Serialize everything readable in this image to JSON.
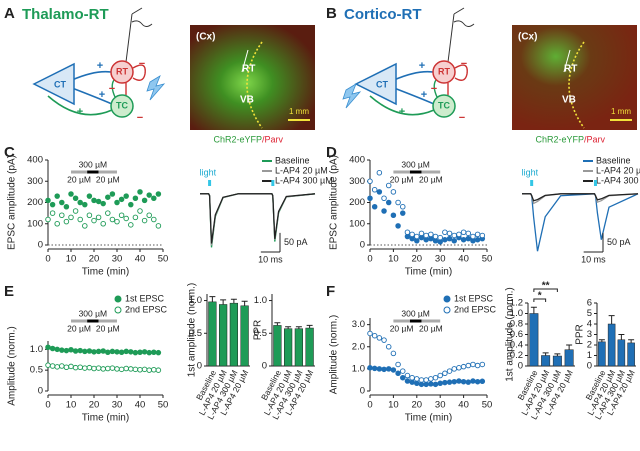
{
  "panels": {
    "A": {
      "label": "A",
      "title": "Thalamo-RT",
      "color": "#1e9b57",
      "diagram": {
        "nodes": [
          "CT",
          "RT",
          "TC"
        ],
        "signs": [
          "+",
          "+",
          "+",
          "−",
          "−",
          "−"
        ]
      },
      "image": {
        "labels": [
          "(Cx)",
          "RT",
          "VB"
        ],
        "scale": "1 mm",
        "caption": [
          "ChR2-eYFP",
          "/Parv"
        ]
      }
    },
    "B": {
      "label": "B",
      "title": "Cortico-RT",
      "color": "#1f6fb5",
      "diagram": {
        "nodes": [
          "CT",
          "RT",
          "TC"
        ],
        "signs": [
          "+",
          "+",
          "+",
          "−",
          "−",
          "−"
        ]
      },
      "image": {
        "labels": [
          "(Cx)",
          "RT",
          "VB"
        ],
        "scale": "1 mm",
        "caption": [
          "ChR2-eYFP",
          "/Parv"
        ]
      }
    },
    "C": {
      "label": "C"
    },
    "D": {
      "label": "D"
    },
    "E": {
      "label": "E"
    },
    "F": {
      "label": "F"
    }
  },
  "chart_data": [
    {
      "type": "scatter",
      "y_label": "EPSC amplitude (pA)",
      "x_label": "Time (min)",
      "xlim": [
        0,
        50
      ],
      "xticks": [
        0,
        10,
        20,
        30,
        40,
        50
      ],
      "ylim": [
        0,
        400
      ],
      "yticks": [
        0,
        100,
        200,
        300,
        400
      ],
      "zero_line": "dotted",
      "drug_bars": [
        {
          "label": "300 µM",
          "start": 17,
          "end": 22,
          "color": "#000000"
        },
        {
          "label": "20 µM",
          "start": 10,
          "end": 17,
          "color": "#aaaaaa"
        },
        {
          "label": "20 µM",
          "start": 22,
          "end": 30,
          "color": "#aaaaaa"
        }
      ],
      "x": [
        0,
        2,
        4,
        6,
        8,
        10,
        12,
        14,
        16,
        18,
        20,
        22,
        24,
        26,
        28,
        30,
        32,
        34,
        36,
        38,
        40,
        42,
        44,
        46,
        48
      ],
      "series": [
        {
          "color": "#1e9b57",
          "filled": true,
          "values": [
            210,
            190,
            230,
            200,
            180,
            240,
            220,
            200,
            190,
            230,
            210,
            205,
            195,
            225,
            240,
            200,
            215,
            230,
            190,
            220,
            250,
            210,
            235,
            220,
            240
          ]
        },
        {
          "color": "#1e9b57",
          "filled": false,
          "values": [
            120,
            150,
            100,
            140,
            110,
            130,
            160,
            120,
            90,
            140,
            115,
            130,
            100,
            150,
            120,
            110,
            140,
            125,
            95,
            130,
            160,
            115,
            140,
            120,
            90
          ]
        }
      ]
    },
    {
      "type": "trace",
      "xlim": [
        0,
        60
      ],
      "ylim": [
        -160,
        10
      ],
      "light": {
        "label": "light",
        "times": [
          5,
          38
        ]
      },
      "scalebar": {
        "y": {
          "value": 50,
          "label": "50 pA"
        },
        "x": {
          "value": 10,
          "label": "10 ms"
        }
      },
      "x": [
        0,
        4.5,
        5,
        6,
        8,
        12,
        20,
        37.5,
        38,
        39,
        41,
        45,
        60
      ],
      "series": [
        {
          "name": "Baseline",
          "color": "#1e9b57",
          "values": [
            0,
            0,
            -5,
            -140,
            -60,
            -10,
            0,
            0,
            -5,
            -125,
            -50,
            -8,
            0
          ]
        },
        {
          "name": "L-AP4 20 µM",
          "color": "#999999",
          "values": [
            0,
            0,
            -5,
            -135,
            -58,
            -10,
            0,
            0,
            -5,
            -120,
            -48,
            -8,
            0
          ]
        },
        {
          "name": "L-AP4 300 µM",
          "color": "#222222",
          "values": [
            0,
            0,
            -5,
            -130,
            -55,
            -9,
            0,
            0,
            -5,
            -118,
            -46,
            -7,
            0
          ]
        }
      ]
    },
    {
      "type": "scatter",
      "y_label": "EPSC amplitude (pA)",
      "x_label": "Time (min)",
      "xlim": [
        0,
        50
      ],
      "xticks": [
        0,
        10,
        20,
        30,
        40,
        50
      ],
      "ylim": [
        0,
        400
      ],
      "yticks": [
        0,
        100,
        200,
        300,
        400
      ],
      "zero_line": "dotted",
      "drug_bars": [
        {
          "label": "300 µM",
          "start": 17,
          "end": 22,
          "color": "#000000"
        },
        {
          "label": "20 µM",
          "start": 10,
          "end": 17,
          "color": "#aaaaaa"
        },
        {
          "label": "20 µM",
          "start": 22,
          "end": 30,
          "color": "#aaaaaa"
        }
      ],
      "x": [
        0,
        2,
        4,
        6,
        8,
        10,
        12,
        14,
        16,
        18,
        20,
        22,
        24,
        26,
        28,
        30,
        32,
        34,
        36,
        38,
        40,
        42,
        44,
        46,
        48
      ],
      "series": [
        {
          "color": "#1f6fb5",
          "filled": true,
          "values": [
            220,
            180,
            250,
            160,
            200,
            140,
            90,
            150,
            40,
            30,
            20,
            35,
            25,
            30,
            20,
            15,
            25,
            30,
            20,
            35,
            25,
            30,
            20,
            25,
            30
          ]
        },
        {
          "color": "#1f6fb5",
          "filled": false,
          "values": [
            300,
            260,
            340,
            220,
            280,
            250,
            200,
            180,
            60,
            50,
            40,
            55,
            45,
            50,
            40,
            35,
            60,
            55,
            45,
            50,
            60,
            55,
            40,
            50,
            45
          ]
        }
      ]
    },
    {
      "type": "trace",
      "xlim": [
        0,
        60
      ],
      "ylim": [
        -160,
        10
      ],
      "light": {
        "label": "light",
        "times": [
          5,
          38
        ]
      },
      "scalebar": {
        "y": {
          "value": 50,
          "label": "50 pA"
        },
        "x": {
          "value": 10,
          "label": "10 ms"
        }
      },
      "x": [
        0,
        4.5,
        5,
        6,
        8,
        12,
        20,
        37.5,
        38,
        39,
        41,
        45,
        60
      ],
      "series": [
        {
          "name": "Baseline",
          "color": "#1f6fb5",
          "values": [
            0,
            0,
            -5,
            -60,
            -150,
            -60,
            -5,
            0,
            -5,
            -50,
            -120,
            -35,
            0
          ]
        },
        {
          "name": "L-AP4 20 µM",
          "color": "#999999",
          "values": [
            0,
            0,
            -5,
            -25,
            -20,
            -5,
            0,
            0,
            -5,
            -22,
            -18,
            -5,
            0
          ]
        },
        {
          "name": "L-AP4 300 µM",
          "color": "#222222",
          "values": [
            0,
            0,
            -5,
            -18,
            -15,
            -4,
            0,
            0,
            -5,
            -16,
            -13,
            -4,
            0
          ]
        }
      ]
    },
    {
      "type": "scatter",
      "y_label": "Amplitude (norm.)",
      "x_label": "Time (min)",
      "legend": "top-right",
      "xlim": [
        0,
        50
      ],
      "xticks": [
        0,
        10,
        20,
        30,
        40,
        50
      ],
      "ylim": [
        0,
        1.2
      ],
      "yticks": [
        0,
        0.5,
        {
          "value": 1,
          "label": "1.0"
        }
      ],
      "drug_bars": [
        {
          "label": "300 µM",
          "start": 17,
          "end": 22,
          "color": "#000000"
        },
        {
          "label": "20 µM",
          "start": 10,
          "end": 17,
          "color": "#aaaaaa"
        },
        {
          "label": "20 µM",
          "start": 22,
          "end": 30,
          "color": "#aaaaaa"
        }
      ],
      "x": [
        0,
        2,
        4,
        6,
        8,
        10,
        12,
        14,
        16,
        18,
        20,
        22,
        24,
        26,
        28,
        30,
        32,
        34,
        36,
        38,
        40,
        42,
        44,
        46,
        48
      ],
      "series": [
        {
          "name": "1st EPSC",
          "color": "#1e9b57",
          "filled": true,
          "values": [
            1.05,
            1.02,
            1.0,
            0.98,
            0.97,
            0.99,
            0.96,
            0.97,
            0.95,
            0.96,
            0.94,
            0.95,
            0.96,
            0.93,
            0.95,
            0.94,
            0.93,
            0.95,
            0.94,
            0.92,
            0.93,
            0.94,
            0.92,
            0.93,
            0.92
          ]
        },
        {
          "name": "2nd EPSC",
          "color": "#1e9b57",
          "filled": false,
          "values": [
            0.62,
            0.6,
            0.58,
            0.6,
            0.57,
            0.59,
            0.56,
            0.57,
            0.55,
            0.56,
            0.54,
            0.55,
            0.53,
            0.54,
            0.55,
            0.53,
            0.52,
            0.54,
            0.53,
            0.52,
            0.51,
            0.52,
            0.5,
            0.51,
            0.5
          ]
        }
      ]
    },
    {
      "type": "bar",
      "y_label": "1st amplitude (norm.)",
      "color": "#1e9b57",
      "categories": [
        "Baseline",
        "L-AP4 20 µM",
        "L-AP4 300 µM",
        "L-AP4 20 µM"
      ],
      "values": [
        0.98,
        0.94,
        0.96,
        0.92
      ],
      "errors": [
        0.08,
        0.07,
        0.06,
        0.07
      ],
      "ylim": [
        0,
        1.1
      ],
      "yticks": [
        0,
        0.5,
        {
          "value": 1,
          "label": "1.0"
        }
      ]
    },
    {
      "type": "bar",
      "y_label": "PPR",
      "color": "#1e9b57",
      "categories": [
        "Baseline",
        "L-AP4 20 µM",
        "L-AP4 300 µM",
        "L-AP4 20 µM"
      ],
      "values": [
        0.62,
        0.57,
        0.57,
        0.58
      ],
      "errors": [
        0.04,
        0.03,
        0.03,
        0.04
      ],
      "ylim": [
        0,
        1.1
      ],
      "yticks": [
        0,
        0.5,
        {
          "value": 1,
          "label": "1.0"
        }
      ]
    },
    {
      "type": "scatter",
      "y_label": "Amplitude (norm.)",
      "x_label": "Time (min)",
      "legend": "top-right",
      "xlim": [
        0,
        50
      ],
      "xticks": [
        0,
        10,
        20,
        30,
        40,
        50
      ],
      "ylim": [
        0,
        3.3
      ],
      "yticks": [
        0,
        {
          "value": 1,
          "label": "1.0"
        },
        {
          "value": 2,
          "label": "2.0"
        },
        {
          "value": 3,
          "label": "3.0"
        }
      ],
      "drug_bars": [
        {
          "label": "300 µM",
          "start": 17,
          "end": 22,
          "color": "#000000"
        },
        {
          "label": "20 µM",
          "start": 10,
          "end": 17,
          "color": "#aaaaaa"
        },
        {
          "label": "20 µM",
          "start": 22,
          "end": 30,
          "color": "#aaaaaa"
        }
      ],
      "x": [
        0,
        2,
        4,
        6,
        8,
        10,
        12,
        14,
        16,
        18,
        20,
        22,
        24,
        26,
        28,
        30,
        32,
        34,
        36,
        38,
        40,
        42,
        44,
        46,
        48
      ],
      "series": [
        {
          "name": "1st EPSC",
          "color": "#1f6fb5",
          "filled": true,
          "values": [
            1.05,
            1.02,
            1.0,
            0.98,
            1.0,
            0.95,
            0.8,
            0.6,
            0.45,
            0.4,
            0.35,
            0.3,
            0.3,
            0.32,
            0.3,
            0.35,
            0.38,
            0.4,
            0.42,
            0.45,
            0.42,
            0.4,
            0.45,
            0.42,
            0.44
          ]
        },
        {
          "name": "2nd EPSC",
          "color": "#1f6fb5",
          "filled": false,
          "values": [
            2.6,
            2.5,
            2.4,
            2.3,
            2.0,
            1.7,
            1.2,
            0.9,
            0.7,
            0.6,
            0.55,
            0.5,
            0.5,
            0.55,
            0.6,
            0.7,
            0.8,
            0.9,
            1.0,
            1.05,
            1.1,
            1.15,
            1.2,
            1.15,
            1.2
          ]
        }
      ]
    },
    {
      "type": "bar",
      "y_label": "1st amplitude (norm.)",
      "color": "#1f6fb5",
      "categories": [
        "Baseline",
        "L-AP4 20 µM",
        "L-AP4 300 µM",
        "L-AP4 20 µM"
      ],
      "values": [
        1.0,
        0.2,
        0.19,
        0.31
      ],
      "errors": [
        0.12,
        0.05,
        0.04,
        0.09
      ],
      "ylim": [
        0,
        1.2
      ],
      "yticks": [
        0,
        0.2,
        0.4,
        0.6,
        0.8,
        {
          "value": 1,
          "label": "1.0"
        },
        1.2
      ],
      "significance": [
        {
          "label": "**",
          "from": 0,
          "to": 2
        },
        {
          "label": "*",
          "from": 0,
          "to": 1
        }
      ]
    },
    {
      "type": "bar",
      "y_label": "PPR",
      "color": "#1f6fb5",
      "categories": [
        "Baseline",
        "L-AP4 20 µM",
        "L-AP4 300 µM",
        "L-AP4 20 µM"
      ],
      "values": [
        2.3,
        4.0,
        2.5,
        2.2
      ],
      "errors": [
        0.2,
        0.8,
        0.5,
        0.3
      ],
      "ylim": [
        0,
        6
      ],
      "yticks": [
        0,
        1,
        2,
        3,
        4,
        5,
        6
      ]
    }
  ]
}
